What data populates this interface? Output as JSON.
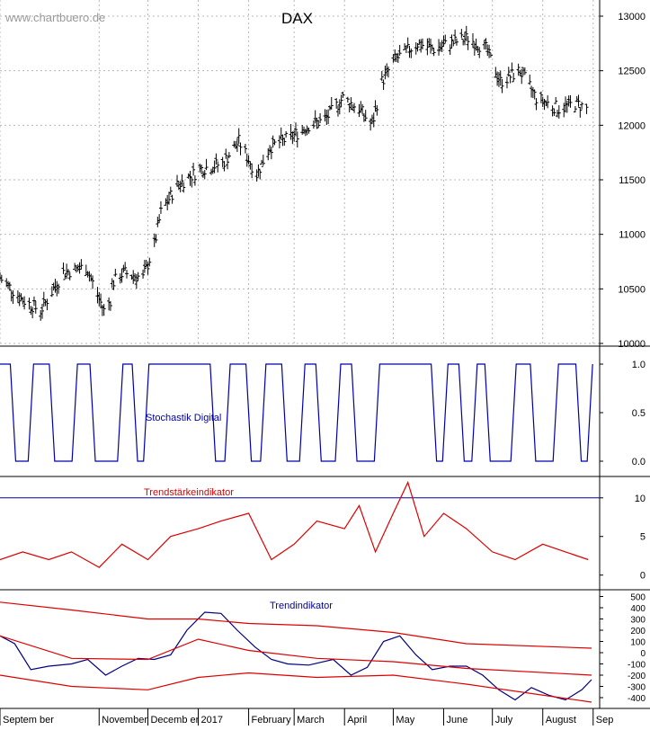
{
  "watermark": "www.chartbuero.de",
  "chart_data": [
    {
      "panel": "price",
      "type": "bar",
      "title": "DAX",
      "y_ticks": [
        10000,
        10500,
        11000,
        11500,
        12000,
        12500,
        13000
      ],
      "ylim": [
        10000,
        13000
      ],
      "x_range": [
        "2016-09-01",
        "2017-09-05"
      ],
      "grid": true,
      "color": "#000000",
      "series": [
        {
          "x": [
            "2016-09-01",
            "2016-09-15",
            "2016-09-26",
            "2016-10-10",
            "2016-10-24",
            "2016-11-04",
            "2016-11-08",
            "2016-11-09",
            "2016-11-16",
            "2016-11-28",
            "2016-12-05",
            "2016-12-09",
            "2016-12-19",
            "2017-01-03",
            "2017-01-16",
            "2017-01-26",
            "2017-02-06",
            "2017-02-14",
            "2017-02-28",
            "2017-03-10",
            "2017-03-20",
            "2017-03-31",
            "2017-04-10",
            "2017-04-18",
            "2017-04-24",
            "2017-05-02",
            "2017-05-16",
            "2017-05-26",
            "2017-06-05",
            "2017-06-16",
            "2017-06-27",
            "2017-07-06",
            "2017-07-18",
            "2017-07-28",
            "2017-08-04",
            "2017-08-11",
            "2017-08-21",
            "2017-08-29"
          ],
          "close": [
            10600,
            10400,
            10300,
            10650,
            10700,
            10300,
            10400,
            10550,
            10650,
            10600,
            10900,
            11200,
            11450,
            11600,
            11650,
            11850,
            11550,
            11800,
            11900,
            12000,
            12050,
            12250,
            12150,
            12000,
            12400,
            12600,
            12750,
            12700,
            12750,
            12800,
            12700,
            12400,
            12500,
            12250,
            12200,
            12150,
            12200,
            12150
          ]
        }
      ]
    },
    {
      "panel": "stochastic",
      "type": "line",
      "title": "Stochastik Digital",
      "y_ticks": [
        0.0,
        0.5,
        1.0
      ],
      "y_tick_labels": [
        "0.0",
        "0.5",
        "1.0"
      ],
      "ylim": [
        0,
        1
      ],
      "color": "#0000aa",
      "series": [
        {
          "x": [
            "2016-09-01",
            "2016-09-09",
            "2016-09-20",
            "2016-10-03",
            "2016-10-17",
            "2016-10-28",
            "2016-11-14",
            "2016-11-23",
            "2016-11-30",
            "2016-12-27",
            "2017-01-10",
            "2017-01-19",
            "2017-02-01",
            "2017-02-10",
            "2017-02-23",
            "2017-03-06",
            "2017-03-16",
            "2017-03-28",
            "2017-04-07",
            "2017-04-21",
            "2017-05-12",
            "2017-05-26",
            "2017-06-02",
            "2017-06-12",
            "2017-06-20",
            "2017-06-28",
            "2017-07-14",
            "2017-07-26",
            "2017-08-09",
            "2017-08-23",
            "2017-08-30"
          ],
          "y": [
            1,
            0,
            1,
            0,
            1,
            0,
            1,
            0,
            1,
            1,
            0,
            1,
            0,
            1,
            0,
            1,
            0,
            1,
            0,
            1,
            1,
            0,
            1,
            0,
            1,
            0,
            1,
            0,
            1,
            0,
            1
          ]
        }
      ]
    },
    {
      "panel": "trend_strength",
      "type": "line",
      "title": "Trendstärkeindikator",
      "y_ticks": [
        0,
        5,
        10
      ],
      "ylim": [
        -0.5,
        13
      ],
      "reference_line": 10,
      "color": "#dd0000",
      "series": [
        {
          "x": [
            "2016-09-01",
            "2016-09-15",
            "2016-10-01",
            "2016-10-15",
            "2016-11-01",
            "2016-11-15",
            "2016-12-01",
            "2016-12-15",
            "2017-01-01",
            "2017-01-15",
            "2017-02-01",
            "2017-02-15",
            "2017-03-01",
            "2017-03-15",
            "2017-04-01",
            "2017-04-10",
            "2017-04-20",
            "2017-05-01",
            "2017-05-10",
            "2017-05-20",
            "2017-06-01",
            "2017-06-15",
            "2017-07-01",
            "2017-07-15",
            "2017-08-01",
            "2017-08-15",
            "2017-08-29"
          ],
          "y": [
            2,
            3,
            2,
            3,
            1,
            4,
            2,
            5,
            6,
            7,
            8,
            2,
            4,
            7,
            6,
            9,
            3,
            8,
            12,
            5,
            8,
            6,
            3,
            2,
            4,
            3,
            2
          ]
        }
      ]
    },
    {
      "panel": "trend",
      "type": "line",
      "title": "Trendindikator",
      "y_ticks": [
        -400,
        -300,
        -200,
        -100,
        0,
        100,
        200,
        300,
        400,
        500
      ],
      "ylim": [
        -480,
        560
      ],
      "series": [
        {
          "color": "#000080",
          "x": [
            "2016-09-01",
            "2016-09-10",
            "2016-09-20",
            "2016-10-01",
            "2016-10-15",
            "2016-10-25",
            "2016-11-05",
            "2016-11-15",
            "2016-11-25",
            "2016-12-05",
            "2016-12-15",
            "2016-12-25",
            "2017-01-05",
            "2017-01-15",
            "2017-01-25",
            "2017-02-05",
            "2017-02-15",
            "2017-02-25",
            "2017-03-10",
            "2017-03-25",
            "2017-04-05",
            "2017-04-15",
            "2017-04-25",
            "2017-05-05",
            "2017-05-15",
            "2017-05-25",
            "2017-06-05",
            "2017-06-15",
            "2017-06-25",
            "2017-07-05",
            "2017-07-15",
            "2017-07-25",
            "2017-08-05",
            "2017-08-15",
            "2017-08-25",
            "2017-08-31"
          ],
          "y": [
            150,
            80,
            -150,
            -120,
            -100,
            -60,
            -200,
            -120,
            -50,
            -60,
            -20,
            200,
            360,
            350,
            200,
            50,
            -60,
            -100,
            -110,
            -60,
            -200,
            -130,
            100,
            150,
            -20,
            -150,
            -120,
            -120,
            -200,
            -330,
            -420,
            -310,
            -380,
            -420,
            -330,
            -240
          ]
        },
        {
          "color": "#dd0000",
          "x": [
            "2016-09-01",
            "2016-10-15",
            "2016-12-01",
            "2017-01-01",
            "2017-02-01",
            "2017-03-15",
            "2017-05-01",
            "2017-06-15",
            "2017-08-31"
          ],
          "y": [
            450,
            380,
            300,
            300,
            260,
            240,
            180,
            80,
            40
          ]
        },
        {
          "color": "#dd0000",
          "x": [
            "2016-09-01",
            "2016-10-15",
            "2016-12-01",
            "2017-01-01",
            "2017-02-01",
            "2017-03-15",
            "2017-05-01",
            "2017-06-15",
            "2017-08-31"
          ],
          "y": [
            150,
            -50,
            -60,
            120,
            20,
            -50,
            -80,
            -140,
            -200
          ]
        },
        {
          "color": "#dd0000",
          "x": [
            "2016-09-01",
            "2016-10-15",
            "2016-12-01",
            "2017-01-01",
            "2017-02-01",
            "2017-03-15",
            "2017-05-01",
            "2017-06-15",
            "2017-08-31"
          ],
          "y": [
            -200,
            -300,
            -330,
            -220,
            -180,
            -220,
            -200,
            -280,
            -440
          ]
        }
      ]
    }
  ],
  "x_axis": {
    "labels": [
      {
        "text": "Septem ber",
        "date": "2016-09-01"
      },
      {
        "text": "November",
        "date": "2016-11-01"
      },
      {
        "text": "Decemb er",
        "date": "2016-12-01"
      },
      {
        "text": "2017",
        "date": "2017-01-01"
      },
      {
        "text": "February",
        "date": "2017-02-01"
      },
      {
        "text": "March",
        "date": "2017-03-01"
      },
      {
        "text": "April",
        "date": "2017-04-01"
      },
      {
        "text": "May",
        "date": "2017-05-01"
      },
      {
        "text": "June",
        "date": "2017-06-01"
      },
      {
        "text": "July",
        "date": "2017-07-01"
      },
      {
        "text": "August",
        "date": "2017-08-01"
      },
      {
        "text": "Sep",
        "date": "2017-09-01"
      }
    ]
  }
}
